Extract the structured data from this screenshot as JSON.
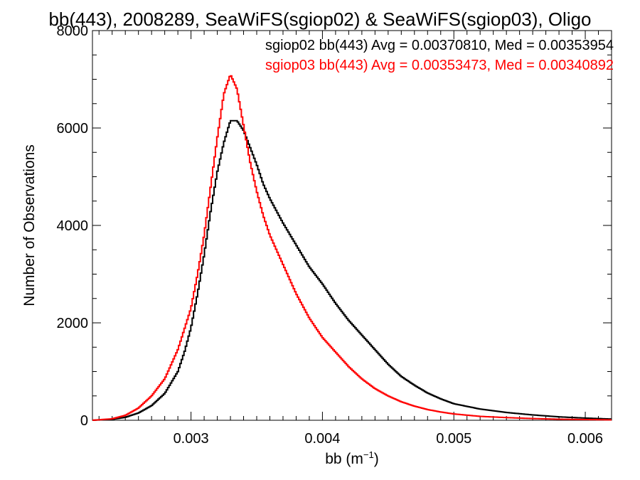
{
  "chart_data": {
    "type": "line",
    "title": "bb(443), 2008289, SeaWiFS(sgiop02) & SeaWiFS(sgiop03), Oligo",
    "xlabel": "bb (m",
    "xlabel_sup": "−1",
    "xlabel_end": ")",
    "ylabel": "Number of Observations",
    "xlim": [
      0.00225,
      0.0062
    ],
    "ylim": [
      0,
      8000
    ],
    "x_ticks": [
      0.003,
      0.004,
      0.005,
      0.006
    ],
    "x_tick_labels": [
      "0.003",
      "0.004",
      "0.005",
      "0.006"
    ],
    "y_ticks": [
      0,
      2000,
      4000,
      6000,
      8000
    ],
    "y_tick_labels": [
      "0",
      "2000",
      "4000",
      "6000",
      "8000"
    ],
    "grid": false,
    "legend_placement": "top-right",
    "series": [
      {
        "name": "sgiop02",
        "legend": "sgiop02 bb(443) Avg = 0.00370810, Med = 0.00353954",
        "color": "#000000",
        "points": [
          [
            0.00225,
            0
          ],
          [
            0.0024,
            20
          ],
          [
            0.0025,
            60
          ],
          [
            0.0026,
            150
          ],
          [
            0.0027,
            300
          ],
          [
            0.0028,
            550
          ],
          [
            0.0029,
            1000
          ],
          [
            0.00295,
            1400
          ],
          [
            0.003,
            1900
          ],
          [
            0.00305,
            2600
          ],
          [
            0.0031,
            3400
          ],
          [
            0.00315,
            4300
          ],
          [
            0.0032,
            5100
          ],
          [
            0.00325,
            5700
          ],
          [
            0.0033,
            6150
          ],
          [
            0.00335,
            6150
          ],
          [
            0.0034,
            5950
          ],
          [
            0.00345,
            5600
          ],
          [
            0.0035,
            5250
          ],
          [
            0.00355,
            4850
          ],
          [
            0.0036,
            4550
          ],
          [
            0.0037,
            4050
          ],
          [
            0.0038,
            3600
          ],
          [
            0.0039,
            3150
          ],
          [
            0.004,
            2800
          ],
          [
            0.0041,
            2400
          ],
          [
            0.0042,
            2050
          ],
          [
            0.0043,
            1750
          ],
          [
            0.0044,
            1450
          ],
          [
            0.0045,
            1150
          ],
          [
            0.0046,
            900
          ],
          [
            0.0047,
            720
          ],
          [
            0.0048,
            560
          ],
          [
            0.0049,
            440
          ],
          [
            0.005,
            340
          ],
          [
            0.0052,
            230
          ],
          [
            0.0054,
            160
          ],
          [
            0.0056,
            110
          ],
          [
            0.0058,
            70
          ],
          [
            0.006,
            45
          ],
          [
            0.0062,
            25
          ]
        ]
      },
      {
        "name": "sgiop03",
        "legend": "sgiop03 bb(443) Avg = 0.00353473, Med = 0.00340892",
        "color": "#ff0000",
        "points": [
          [
            0.00225,
            0
          ],
          [
            0.0024,
            30
          ],
          [
            0.0025,
            100
          ],
          [
            0.0026,
            250
          ],
          [
            0.0027,
            500
          ],
          [
            0.0028,
            850
          ],
          [
            0.0029,
            1450
          ],
          [
            0.003,
            2300
          ],
          [
            0.00305,
            3000
          ],
          [
            0.0031,
            3800
          ],
          [
            0.00315,
            4800
          ],
          [
            0.0032,
            5800
          ],
          [
            0.00325,
            6700
          ],
          [
            0.0033,
            7100
          ],
          [
            0.00335,
            6800
          ],
          [
            0.0034,
            6050
          ],
          [
            0.00345,
            5300
          ],
          [
            0.0035,
            4700
          ],
          [
            0.00355,
            4200
          ],
          [
            0.0036,
            3800
          ],
          [
            0.0037,
            3200
          ],
          [
            0.0038,
            2600
          ],
          [
            0.0039,
            2100
          ],
          [
            0.004,
            1700
          ],
          [
            0.0041,
            1400
          ],
          [
            0.0042,
            1100
          ],
          [
            0.0043,
            850
          ],
          [
            0.0044,
            650
          ],
          [
            0.0045,
            500
          ],
          [
            0.0046,
            380
          ],
          [
            0.0047,
            290
          ],
          [
            0.0048,
            220
          ],
          [
            0.0049,
            170
          ],
          [
            0.005,
            130
          ],
          [
            0.0052,
            80
          ],
          [
            0.0054,
            55
          ],
          [
            0.0056,
            35
          ],
          [
            0.0058,
            22
          ],
          [
            0.006,
            15
          ],
          [
            0.0062,
            8
          ]
        ]
      }
    ]
  }
}
